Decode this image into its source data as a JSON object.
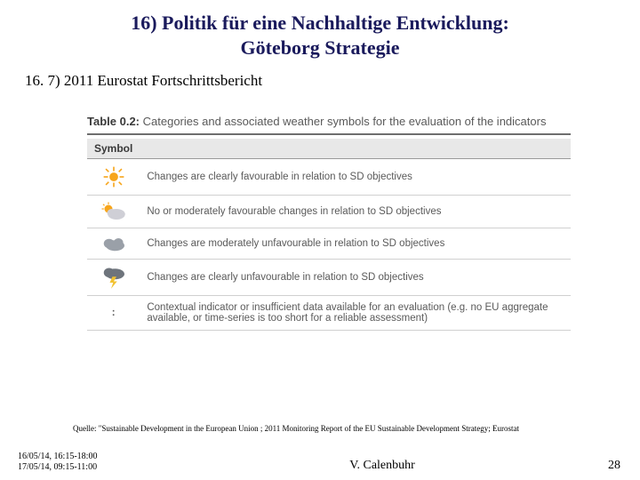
{
  "title_line1": "16) Politik für eine Nachhaltige Entwicklung:",
  "title_line2": "Göteborg Strategie",
  "subheading": "16. 7) 2011 Eurostat Fortschrittsbericht",
  "table": {
    "caption_bold": "Table 0.2:",
    "caption_rest": " Categories and associated weather symbols for the evaluation of the indicators",
    "header_symbol": "Symbol",
    "rows": [
      {
        "icon": "sun",
        "text": "Changes are clearly favourable in relation to SD objectives"
      },
      {
        "icon": "suncloud",
        "text": "No or moderately favourable changes in relation to SD objectives"
      },
      {
        "icon": "cloud",
        "text": "Changes are moderately unfavourable in relation to SD objectives"
      },
      {
        "icon": "storm",
        "text": "Changes are clearly unfavourable in relation to SD objectives"
      },
      {
        "icon": "colon",
        "text": "Contextual indicator or insufficient data available for an evaluation (e.g. no EU aggregate available, or time-series is too short for a reliable assessment)"
      }
    ]
  },
  "source": "Quelle: \"Sustainable Development in the European Union ; 2011 Monitoring Report of the EU Sustainable Development Strategy; Eurostat",
  "footer": {
    "date1": "16/05/14, 16:15-18:00",
    "date2": "17/05/14, 09:15-11:00",
    "author": "V. Calenbuhr",
    "page": "28"
  },
  "colors": {
    "title": "#1a1a5c",
    "table_text": "#5a5a5a",
    "sun": "#f7a51b",
    "cloud_light": "#cfcfd6",
    "cloud_mid": "#9aa0a8",
    "cloud_dark": "#6e747c",
    "bolt": "#f2c232"
  }
}
